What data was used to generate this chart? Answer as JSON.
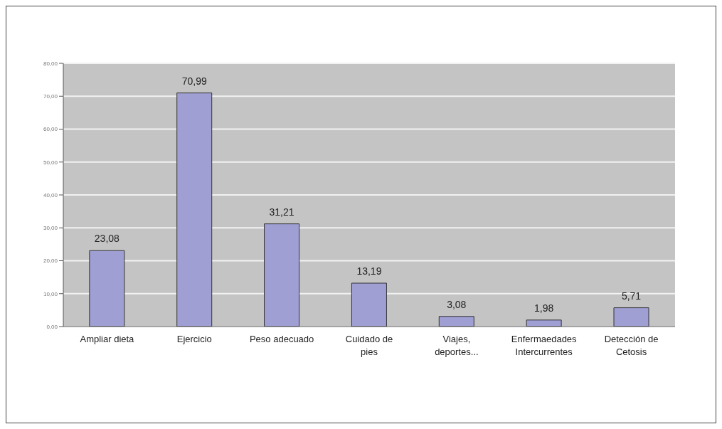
{
  "chart_data": {
    "type": "bar",
    "categories": [
      "Ampliar dieta",
      "Ejercicio",
      "Peso adecuado",
      "Cuidado de pies",
      "Viajes, deportes...",
      "Enfermaedades Intercurrentes",
      "Detección de Cetosis"
    ],
    "values": [
      23.08,
      70.99,
      31.21,
      13.19,
      3.08,
      1.98,
      5.71
    ],
    "value_labels": [
      "23,08",
      "70,99",
      "31,21",
      "13,19",
      "3,08",
      "1,98",
      "5,71"
    ],
    "color": "#9f9fd4",
    "ylim": [
      0,
      80
    ],
    "yticks": [
      {
        "value": 0,
        "label": "0,00"
      },
      {
        "value": 10,
        "label": "10,00"
      },
      {
        "value": 20,
        "label": "20,00"
      },
      {
        "value": 30,
        "label": "30,00"
      },
      {
        "value": 40,
        "label": "40,00"
      },
      {
        "value": 50,
        "label": "50,00"
      },
      {
        "value": 60,
        "label": "60,00"
      },
      {
        "value": 70,
        "label": "70,00"
      },
      {
        "value": 80,
        "label": "80,00"
      }
    ],
    "grid": "y"
  }
}
